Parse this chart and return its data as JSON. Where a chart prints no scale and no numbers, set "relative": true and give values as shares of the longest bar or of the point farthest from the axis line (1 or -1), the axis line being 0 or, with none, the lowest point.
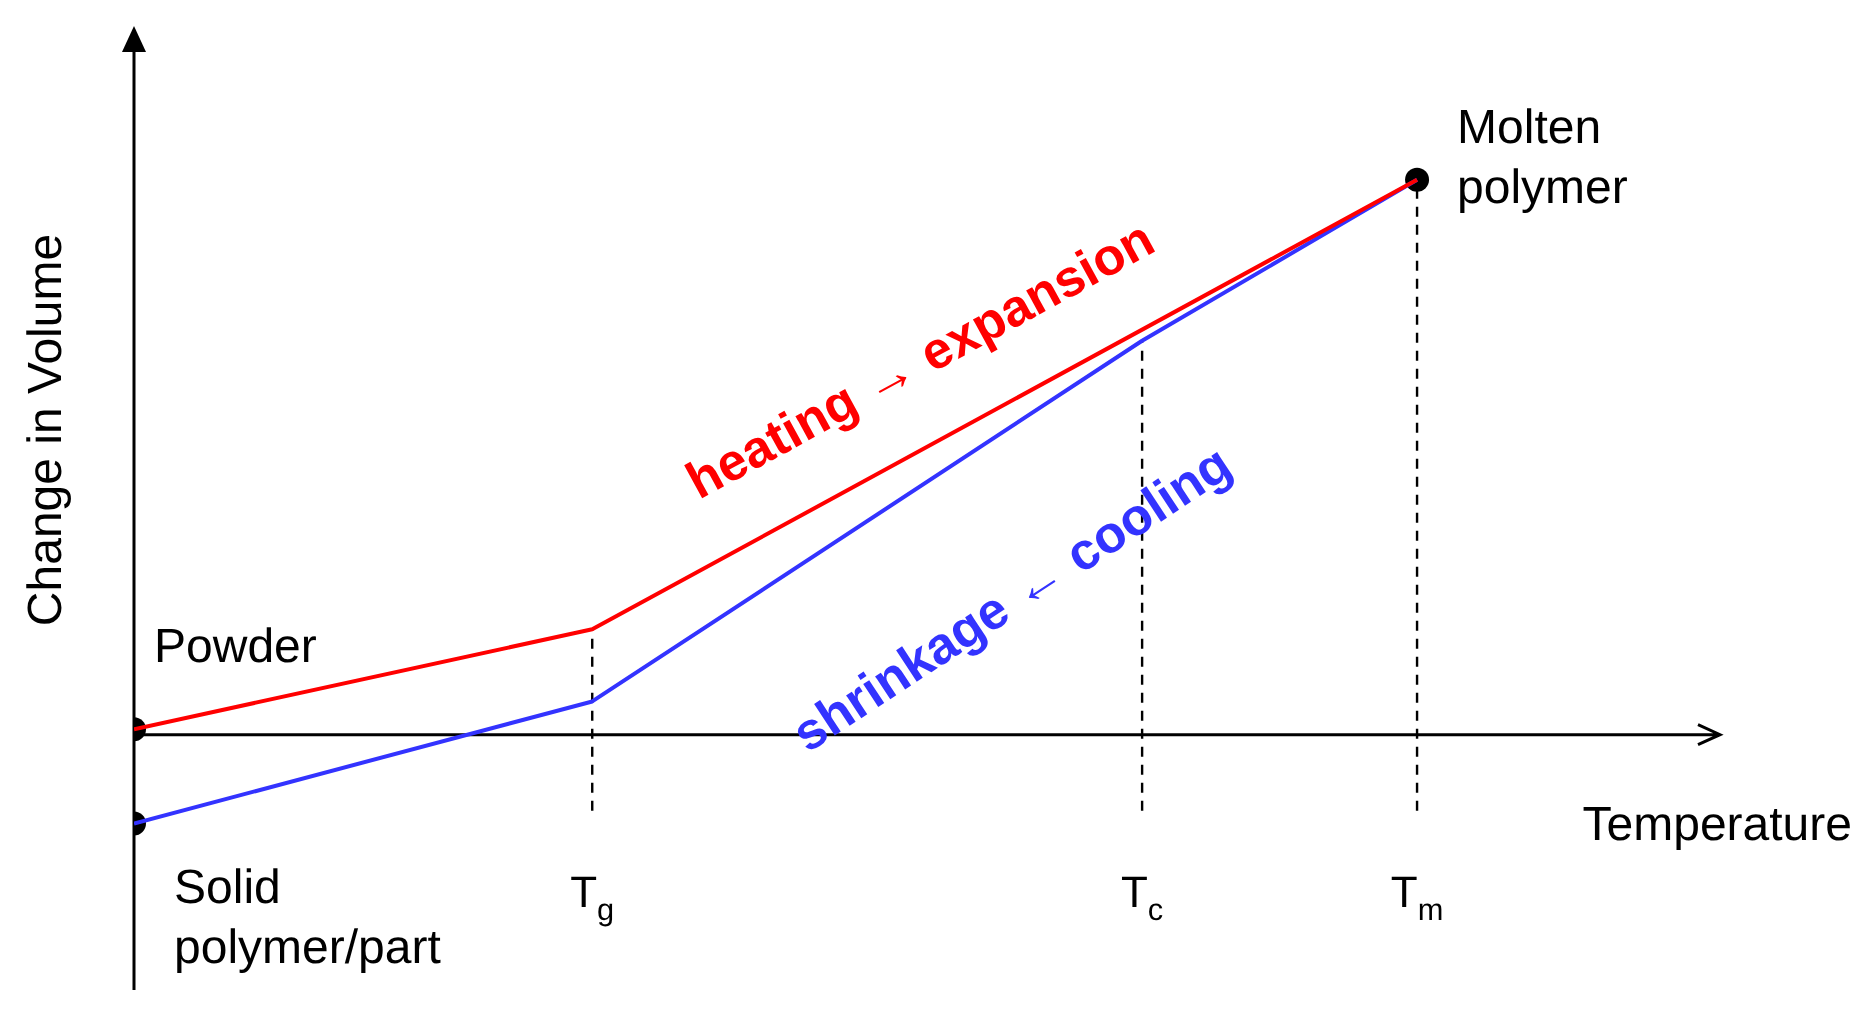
{
  "chart_data": {
    "type": "line",
    "relative": true,
    "xlabel": "Temperature",
    "ylabel": "Change in Volume",
    "categories": [
      null,
      null,
      null,
      null,
      null,
      "T$_{g}$",
      null,
      null,
      null,
      null,
      null,
      "T$_{c}$",
      null,
      null,
      "T$_{m}$",
      null,
      null,
      null
    ],
    "series": [
      {
        "name": "heating → expansion",
        "color": "#ff0000",
        "values": [
          0.01,
          null,
          null,
          null,
          null,
          0.19,
          null,
          null,
          null,
          null,
          null,
          null,
          null,
          null,
          1,
          null,
          null,
          null
        ]
      },
      {
        "name": "shrinkage ← cooling",
        "color": "#3333ff",
        "values": [
          -0.16,
          null,
          null,
          null,
          null,
          0.06,
          null,
          null,
          null,
          null,
          null,
          0.71,
          null,
          null,
          1,
          null,
          null,
          null
        ]
      },
      {
        "type": "scatter",
        "color": "#000000",
        "marker": "circle",
        "values": [
          0.01,
          null,
          null,
          null,
          null,
          null,
          null,
          null,
          null,
          null,
          null,
          null,
          null,
          null,
          1,
          null,
          null,
          null
        ]
      },
      {
        "type": "scatter",
        "color": "#000000",
        "marker": "circle",
        "values": [
          -0.16,
          null,
          null,
          null,
          null,
          null,
          null,
          null,
          null,
          null,
          null,
          null,
          null,
          null,
          null,
          null,
          null,
          null
        ]
      }
    ],
    "ref_lines": [
      {
        "axis": "x",
        "value": "T$_{g}$",
        "line_style": "dashed",
        "color": "#000000"
      },
      {
        "axis": "x",
        "value": "T$_{c}$",
        "line_style": "dashed",
        "color": "#000000"
      },
      {
        "axis": "x",
        "value": "T$_{m}$",
        "line_style": "dashed",
        "color": "#000000"
      }
    ],
    "annotations": [
      "Powder",
      "Solid\npolymer/part",
      {
        "text": "Molten\npolymer",
        "x": "T$_{m}$",
        "y": 1
      }
    ],
    "legend": false,
    "line_style": "solid"
  }
}
